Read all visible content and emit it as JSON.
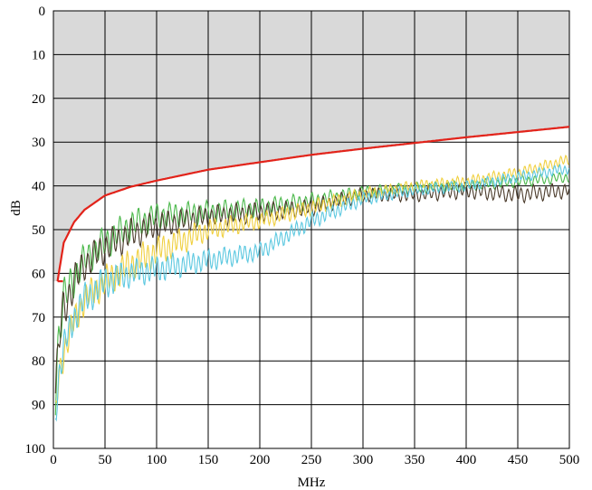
{
  "chart_data": {
    "type": "line",
    "title": "",
    "xlabel": "MHz",
    "ylabel": "dB",
    "xlim": [
      0,
      500
    ],
    "ylim": [
      0,
      100
    ],
    "y_inverted": true,
    "grid": true,
    "x_ticks": [
      "0",
      "50",
      "100",
      "150",
      "200",
      "250",
      "300",
      "350",
      "400",
      "450",
      "500"
    ],
    "y_ticks": [
      "0",
      "10",
      "20",
      "30",
      "40",
      "50",
      "60",
      "70",
      "80",
      "90",
      "100"
    ],
    "shaded_region": {
      "description": "above limit line",
      "color": "#d9d9d9"
    },
    "limit_line": {
      "color": "#e2231a",
      "x": [
        4,
        10,
        20,
        30,
        50,
        75,
        100,
        150,
        200,
        250,
        300,
        350,
        400,
        450,
        500
      ],
      "y": [
        61.8,
        53,
        48.3,
        45.5,
        42.2,
        40.2,
        38.8,
        36.3,
        34.6,
        32.9,
        31.5,
        30.2,
        28.9,
        27.7,
        26.5
      ]
    },
    "series": [
      {
        "color": "#4ab84a",
        "x": [
          2,
          5,
          10,
          20,
          30,
          50,
          75,
          100,
          150,
          200,
          250,
          300,
          350,
          400,
          450,
          500
        ],
        "y": [
          88,
          74,
          66,
          61,
          57,
          53,
          49,
          47,
          46,
          45,
          43.5,
          41.5,
          40.5,
          40,
          39,
          38
        ],
        "amp": [
          4,
          4,
          4,
          3.5,
          3,
          3,
          2.8,
          2.5,
          2,
          1.8,
          1.5,
          1.2,
          1,
          1,
          1,
          1
        ],
        "period": 6
      },
      {
        "color": "#4a3a2a",
        "x": [
          2,
          5,
          10,
          20,
          30,
          50,
          75,
          100,
          150,
          200,
          250,
          300,
          350,
          400,
          450,
          500
        ],
        "y": [
          88,
          76,
          68,
          62,
          58,
          54,
          51,
          49,
          47,
          46,
          45,
          42,
          42,
          41,
          42,
          41
        ],
        "amp": [
          4,
          4,
          4,
          3.5,
          3,
          3,
          2.8,
          2.5,
          2,
          1.8,
          1.5,
          1.3,
          1.3,
          1.5,
          1.5,
          1.4
        ],
        "period": 6
      },
      {
        "color": "#f0d040",
        "x": [
          2,
          5,
          10,
          20,
          30,
          50,
          75,
          100,
          150,
          200,
          250,
          300,
          350,
          400,
          450,
          500
        ],
        "y": [
          93,
          84,
          78,
          71,
          66,
          62,
          58,
          55,
          50,
          48,
          45,
          42,
          40,
          39,
          37,
          34
        ],
        "amp": [
          3,
          3,
          3,
          3,
          3,
          3,
          3,
          2.8,
          2,
          1.5,
          1.5,
          1.2,
          1,
          1,
          1,
          1
        ],
        "period": 5
      },
      {
        "color": "#5cc8e0",
        "x": [
          2,
          5,
          10,
          20,
          30,
          50,
          75,
          100,
          150,
          200,
          250,
          300,
          350,
          400,
          450,
          500
        ],
        "y": [
          92,
          84,
          77,
          70,
          66,
          62,
          60,
          59,
          57,
          55,
          48,
          43,
          41,
          40,
          38,
          36
        ],
        "amp": [
          3,
          3,
          3,
          3,
          3,
          3,
          2.5,
          2.5,
          2,
          1.6,
          1.5,
          1.2,
          1,
          1,
          1,
          1
        ],
        "period": 5
      }
    ]
  }
}
